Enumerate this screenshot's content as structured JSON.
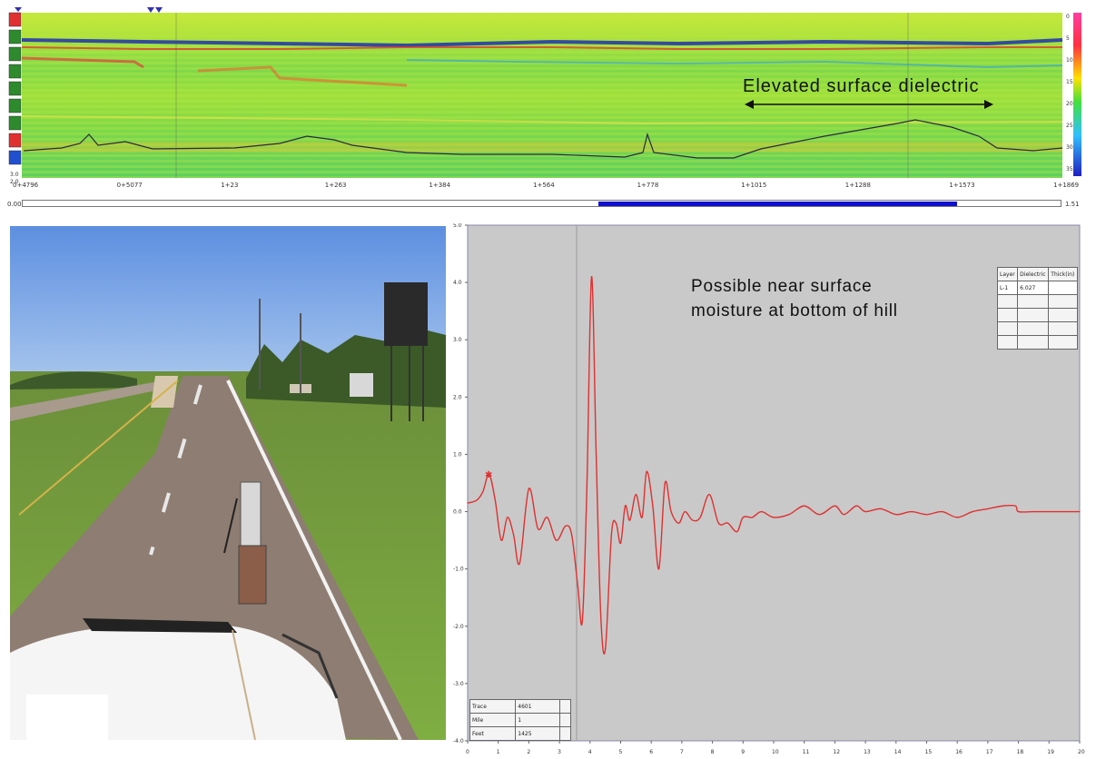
{
  "radargram": {
    "colorbar_ticks": [
      "0",
      "5",
      "10",
      "15",
      "20",
      "25",
      "30",
      "35"
    ],
    "left_readout": [
      "3.0",
      "2.0"
    ],
    "x_ticks": [
      "0+4796",
      "0+5077",
      "1+23",
      "1+263",
      "1+384",
      "1+564",
      "1+778",
      "1+1015",
      "1+1288",
      "1+1573",
      "1+1869"
    ],
    "toolbar_icons": [
      "marker-icon",
      "cursor-icon",
      "zoom-icon",
      "pan-icon",
      "grid-icon",
      "layer-icon",
      "pick-icon",
      "arrow-icon",
      "play-icon"
    ]
  },
  "scrollbar": {
    "min_label": "0.00",
    "max_label": "1.51",
    "thumb_start": 0.555,
    "thumb_end": 0.9
  },
  "annotations": {
    "top": "Elevated surface dielectric",
    "mid_line1": "Possible near surface",
    "mid_line2": "moisture at bottom of hill"
  },
  "waveform": {
    "y_ticks": [
      "5.0",
      "4.0",
      "3.0",
      "2.0",
      "1.0",
      "0.0",
      "-1.0",
      "-2.0",
      "-3.0",
      "-4.0"
    ],
    "x_ticks": [
      "0",
      "1",
      "2",
      "3",
      "4",
      "5",
      "6",
      "7",
      "8",
      "9",
      "10",
      "11",
      "12",
      "13",
      "14",
      "15",
      "16",
      "17",
      "18",
      "19",
      "20"
    ],
    "layer_table": {
      "headers": [
        "Layer",
        "Dielectric",
        "Thick(in)"
      ],
      "rows": [
        [
          "L-1",
          "6.027",
          ""
        ],
        [
          "",
          "",
          ""
        ],
        [
          "",
          "",
          ""
        ],
        [
          "",
          "",
          ""
        ],
        [
          "",
          "",
          ""
        ]
      ]
    },
    "info_table": [
      {
        "label": "Trace",
        "value": "4601"
      },
      {
        "label": "Mile",
        "value": "1"
      },
      {
        "label": "Feet",
        "value": "1425"
      }
    ],
    "line_color": "#e03030",
    "background": "#c9c9c9"
  },
  "chart_data": {
    "type": "line",
    "series": [
      {
        "x": [
          0,
          0.3,
          0.5,
          0.7,
          0.9,
          1.1,
          1.3,
          1.5,
          1.7,
          2.0,
          2.3,
          2.6,
          2.9,
          3.2,
          3.4,
          3.6,
          3.75,
          3.9,
          4.05,
          4.2,
          4.35,
          4.5,
          4.7,
          4.85,
          5.0,
          5.15,
          5.3,
          5.5,
          5.7,
          5.85,
          6.05,
          6.25,
          6.45,
          6.65,
          6.9,
          7.1,
          7.35,
          7.6,
          7.9,
          8.2,
          8.5,
          8.8,
          9.0,
          9.3,
          9.6,
          10.0,
          10.5,
          11.0,
          11.5,
          12.0,
          12.3,
          12.7,
          13.0,
          13.5,
          14.0,
          14.5,
          15.0,
          15.5,
          16.0,
          16.5,
          17.0,
          17.5,
          17.9,
          18.0,
          18.5,
          19.0,
          19.5,
          20.0
        ],
        "y": [
          0.15,
          0.2,
          0.35,
          0.65,
          0.2,
          -0.5,
          -0.1,
          -0.4,
          -0.9,
          0.4,
          -0.3,
          -0.1,
          -0.5,
          -0.25,
          -0.4,
          -1.3,
          -1.9,
          0.5,
          4.1,
          1.0,
          -1.8,
          -2.4,
          -0.4,
          -0.2,
          -0.55,
          0.1,
          -0.15,
          0.3,
          -0.1,
          0.7,
          0.1,
          -1.0,
          0.5,
          0.0,
          -0.2,
          0.0,
          -0.15,
          -0.1,
          0.3,
          -0.2,
          -0.2,
          -0.35,
          -0.1,
          -0.1,
          0.0,
          -0.1,
          -0.05,
          0.1,
          -0.05,
          0.1,
          -0.05,
          0.1,
          0.0,
          0.05,
          -0.05,
          0.0,
          -0.05,
          0.0,
          -0.1,
          0.0,
          0.05,
          0.1,
          0.1,
          0.0,
          0.0,
          0.0,
          0.0,
          0.0
        ]
      }
    ],
    "xlim": [
      0,
      20
    ],
    "ylim": [
      -4,
      5
    ],
    "grid": false
  }
}
